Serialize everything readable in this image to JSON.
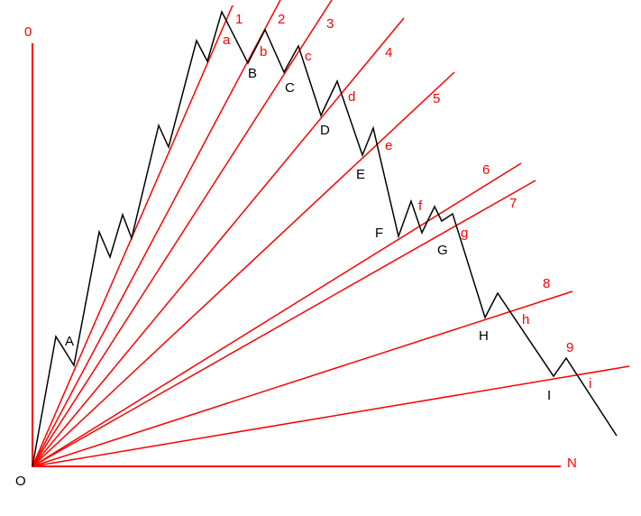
{
  "colors": {
    "background": "#ffffff",
    "axis": "#ff0000",
    "fan_lines": "#ff0000",
    "price_path": "#000000",
    "red_labels": "#ff0000",
    "black_labels": "#000000"
  },
  "axes": {
    "y_label": "0",
    "x_label": "N",
    "origin_label": "O"
  },
  "fan_lines": [
    {
      "number": "1",
      "point_label": "a"
    },
    {
      "number": "2",
      "point_label": "b"
    },
    {
      "number": "3",
      "point_label": "c"
    },
    {
      "number": "4",
      "point_label": "d"
    },
    {
      "number": "5",
      "point_label": "e"
    },
    {
      "number": "6",
      "point_label": "f"
    },
    {
      "number": "7",
      "point_label": "g"
    },
    {
      "number": "8",
      "point_label": "h"
    },
    {
      "number": "9",
      "point_label": "i"
    }
  ],
  "pivot_labels": [
    "A",
    "B",
    "C",
    "D",
    "E",
    "F",
    "G",
    "H",
    "I"
  ]
}
